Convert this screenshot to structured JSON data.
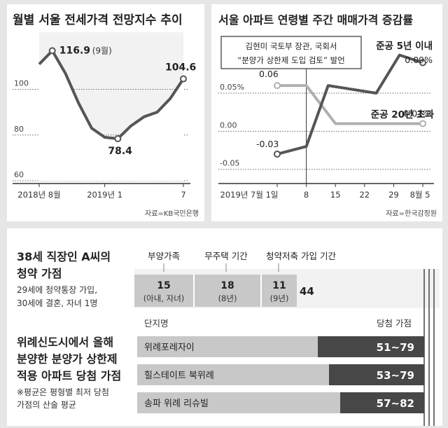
{
  "chart_data": [
    {
      "type": "line",
      "title": "월별 서울 전세가격 전망지수 추이",
      "source": "자료=KB국민은행",
      "x_tick_labels": [
        "2018년 8월",
        "2019년 1",
        "7"
      ],
      "y_ticks": [
        60,
        80,
        100
      ],
      "ylim": [
        60,
        125
      ],
      "series": [
        {
          "values": [
            111,
            116.9,
            107,
            94,
            83,
            79,
            78.4,
            84,
            88,
            90,
            96,
            104.6
          ]
        }
      ],
      "annotations": [
        {
          "index": 1,
          "value_label": "116.9",
          "suffix": "(9월)"
        },
        {
          "index": 6,
          "value_label": "78.4"
        },
        {
          "index": 11,
          "value_label": "104.6"
        }
      ]
    },
    {
      "type": "line",
      "title": "서울 아파트 연령별 주간 매매가격 증감률",
      "source": "자료=한국감정원",
      "x_tick_labels": [
        "2019년 7월 1일",
        "8",
        "15",
        "22",
        "29",
        "8월 5"
      ],
      "x_positions": [
        0,
        1,
        2,
        3,
        4,
        5
      ],
      "y_tick_labels": [
        "0.05%",
        "0.00",
        "-0.05"
      ],
      "y_ticks": [
        0.05,
        0.0,
        -0.05
      ],
      "ylim": [
        -0.065,
        0.13
      ],
      "series": [
        {
          "name": "준공 5년 이내",
          "x": [
            0,
            1,
            1.75,
            3.4,
            4.2,
            5
          ],
          "values": [
            -0.03,
            -0.02,
            0.06,
            0.05,
            0.1,
            0.09
          ],
          "end_label": "0.09%"
        },
        {
          "name": "준공 20년 초과",
          "x": [
            0,
            1,
            2,
            3,
            4,
            5
          ],
          "values": [
            0.06,
            0.06,
            0.01,
            0.01,
            0.01,
            0.01
          ],
          "end_label": "0.01%"
        }
      ],
      "start_labels": [
        "-0.03",
        "0.06"
      ],
      "annotation": {
        "lines": [
          "김현미 국토부 장관, 국회서",
          "“분양가 상한제 도입 검토” 발언"
        ],
        "at_x": 1
      }
    }
  ],
  "infographic": {
    "title_lines": [
      "38세 직장인 A씨의",
      "청약 가점"
    ],
    "desc_lines": [
      "29세에 청약통장 가입,",
      "30세에 결혼, 자녀 1명"
    ],
    "categories": [
      {
        "label": "부양가족",
        "score": "15",
        "detail": "(아내, 자녀)"
      },
      {
        "label": "무주택 기간",
        "score": "18",
        "detail": "(8년)"
      },
      {
        "label": "청약저축 가입 기간",
        "score": "11",
        "detail": "(9년)"
      }
    ],
    "total": "44",
    "table_title_lines": [
      "위례신도시에서 올해",
      "분양한 분양가 상한제",
      "적용 아파트 당첨 가점"
    ],
    "note_lines": [
      "※평균은 평형별 최저 당첨",
      "가점의 산술 평균"
    ],
    "table_headers": [
      "단지명",
      "당첨 가점"
    ],
    "rows": [
      {
        "name": "위례포레자이",
        "range": "51~79",
        "min": 51,
        "max": 79
      },
      {
        "name": "힐스테이트 북위례",
        "range": "53~79",
        "min": 53,
        "max": 79
      },
      {
        "name": "송파 위례 리슈빌",
        "range": "57~82",
        "min": 57,
        "max": 82
      }
    ]
  }
}
